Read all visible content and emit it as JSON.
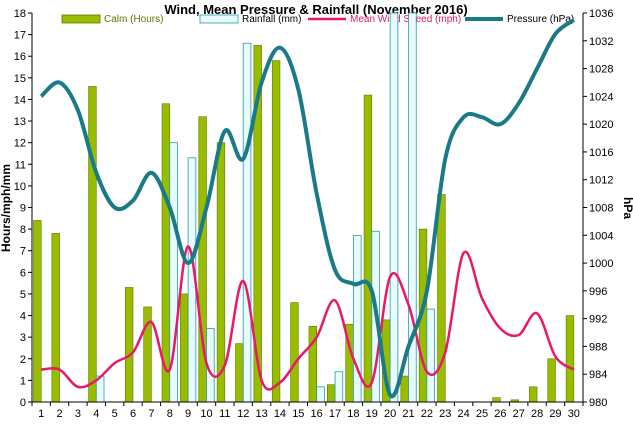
{
  "chart_data": {
    "type": "bar",
    "title": "Wind, Mean Pressure & Rainfall (November 2016)",
    "ylabel_left": "Hours/mph/mm",
    "ylabel_right": "hPa",
    "ylim_left": [
      0,
      18
    ],
    "ylim_right": [
      980,
      1036
    ],
    "x": [
      1,
      2,
      3,
      4,
      5,
      6,
      7,
      8,
      9,
      10,
      11,
      12,
      13,
      14,
      15,
      16,
      17,
      18,
      19,
      20,
      21,
      22,
      23,
      24,
      25,
      26,
      27,
      28,
      29,
      30
    ],
    "left_ticks": [
      "0",
      "1",
      "2",
      "3",
      "4",
      "5",
      "6",
      "7",
      "8",
      "9",
      "10",
      "11",
      "12",
      "13",
      "14",
      "15",
      "16",
      "17",
      "18"
    ],
    "right_ticks": [
      "980",
      "984",
      "988",
      "992",
      "996",
      "1000",
      "1004",
      "1008",
      "1012",
      "1016",
      "1020",
      "1024",
      "1028",
      "1032",
      "1036"
    ],
    "legend_position": "top",
    "grid": false,
    "series": [
      {
        "name": "Calm (Hours)",
        "kind": "bar",
        "axis": "left",
        "color": "#99bb00",
        "stroke": "#5a7a00",
        "values": [
          8.4,
          7.8,
          0,
          14.6,
          0,
          5.3,
          4.4,
          13.8,
          5.0,
          13.2,
          12.0,
          2.7,
          16.5,
          15.8,
          4.6,
          3.5,
          0.8,
          3.6,
          14.2,
          3.8,
          1.2,
          8.0,
          9.6,
          0,
          0,
          0.2,
          0.1,
          0.7,
          2.0,
          4.0
        ]
      },
      {
        "name": "Rainfall (mm)",
        "kind": "bar",
        "axis": "left",
        "color": "#e8fbfb",
        "stroke": "#2a9aa8",
        "values": [
          0,
          0,
          0,
          1.2,
          0,
          0,
          0,
          12.0,
          11.3,
          3.4,
          0,
          16.6,
          0,
          0,
          0,
          0.7,
          1.4,
          7.7,
          7.9,
          18.0,
          18.0,
          4.3,
          0,
          0,
          0,
          0,
          0,
          0,
          0,
          0
        ]
      },
      {
        "name": "Mean Wind Speed (mph)",
        "kind": "line",
        "axis": "left",
        "color": "#e8196a",
        "values": [
          1.5,
          1.5,
          0.7,
          1.0,
          1.8,
          2.3,
          3.7,
          1.5,
          7.2,
          1.8,
          1.7,
          5.6,
          1.0,
          0.9,
          2.0,
          3.0,
          4.7,
          2.0,
          0.9,
          5.8,
          4.5,
          1.4,
          2.3,
          6.9,
          4.8,
          3.4,
          3.1,
          4.1,
          2.1,
          1.5
        ]
      },
      {
        "name": "Pressure (hPa)",
        "kind": "line",
        "axis": "right",
        "color": "#1a7a88",
        "values": [
          1024,
          1026,
          1022,
          1013,
          1008,
          1009,
          1013,
          1008,
          1000,
          1008,
          1019,
          1015,
          1026,
          1031,
          1025,
          1010,
          999,
          997,
          996,
          981,
          988,
          996,
          1015,
          1021,
          1021,
          1020,
          1023,
          1028,
          1033,
          1035
        ]
      }
    ]
  }
}
